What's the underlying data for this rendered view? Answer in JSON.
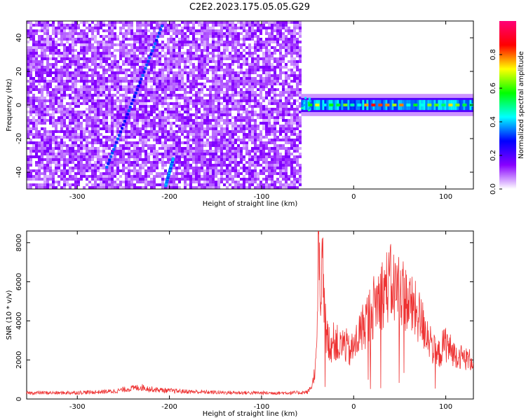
{
  "title": "C2E2.2023.175.05.05.G29",
  "chart_data": [
    {
      "type": "heatmap",
      "xlabel": "Height of straight line (km)",
      "ylabel": "Frequency (Hz)",
      "xlim": [
        -355,
        130
      ],
      "ylim": [
        -50,
        50
      ],
      "xticks": [
        -300,
        -200,
        -100,
        0,
        100
      ],
      "yticks": [
        -40,
        -20,
        0,
        20,
        40
      ],
      "xtick_labels": [
        "-300",
        "-200",
        "-100",
        "0",
        "100"
      ],
      "ytick_labels": [
        "-40",
        "-20",
        "0",
        "20",
        "40"
      ],
      "colorbar": {
        "label": "Normalized spectral amplitude",
        "range": [
          0.0,
          1.0
        ],
        "ticks": [
          0.0,
          0.2,
          0.4,
          0.6,
          0.8
        ],
        "tick_labels": [
          "0.0",
          "0.2",
          "0.4",
          "0.6",
          "0.8"
        ],
        "colormap": [
          "#ffffff",
          "#8800ff",
          "#0000ff",
          "#00ffff",
          "#00ff00",
          "#ffff00",
          "#ff0000",
          "#ff0077"
        ]
      },
      "noise_region": {
        "x": [
          -355,
          -57
        ],
        "freq": [
          -50,
          50
        ],
        "amplitude": 0.1
      },
      "carrier": {
        "x": [
          -57,
          130
        ],
        "freq": 0,
        "halfwidth": 3,
        "amplitude": [
          0.4,
          0.85
        ]
      },
      "traces": [
        {
          "x0": -268,
          "y0": -37,
          "x1": -208,
          "y1": 47,
          "amplitude": 0.25
        },
        {
          "x0": -204,
          "y0": -48,
          "x1": -196,
          "y1": -32,
          "amplitude": 0.3
        }
      ]
    },
    {
      "type": "line",
      "xlabel": "Height of straight line (km)",
      "ylabel": "SNR (10 * v/v)",
      "xlim": [
        -355,
        130
      ],
      "ylim": [
        0,
        8600
      ],
      "xticks": [
        -300,
        -200,
        -100,
        0,
        100
      ],
      "yticks": [
        0,
        2000,
        4000,
        6000,
        8000
      ],
      "xtick_labels": [
        "-300",
        "-200",
        "-100",
        "0",
        "100"
      ],
      "ytick_labels": [
        "0",
        "2000",
        "4000",
        "6000",
        "8000"
      ],
      "color": "#ee3333",
      "series": [
        {
          "x": [
            -355,
            -340,
            -320,
            -300,
            -280,
            -260,
            -240,
            -230,
            -220,
            -200,
            -180,
            -160,
            -140,
            -120,
            -100,
            -80,
            -60,
            -50,
            -45,
            -42,
            -40,
            -38,
            -36,
            -34,
            -30,
            -25,
            -20,
            -15,
            -10,
            -5,
            0,
            5,
            10,
            15,
            20,
            25,
            30,
            35,
            40,
            45,
            50,
            55,
            60,
            65,
            70,
            75,
            80,
            85,
            90,
            95,
            100,
            105,
            110,
            115,
            120,
            125,
            130
          ],
          "values": [
            300,
            320,
            310,
            330,
            350,
            400,
            550,
            600,
            500,
            420,
            380,
            350,
            330,
            320,
            310,
            310,
            320,
            350,
            700,
            1500,
            2300,
            8600,
            3500,
            6800,
            3200,
            2800,
            3000,
            2600,
            2900,
            2400,
            2600,
            3200,
            3700,
            4100,
            4600,
            5000,
            5400,
            5700,
            5900,
            5600,
            5700,
            5300,
            4900,
            4600,
            4300,
            3800,
            3400,
            2800,
            2100,
            2500,
            2900,
            2500,
            2300,
            2200,
            2100,
            2000,
            2000
          ]
        }
      ]
    }
  ]
}
